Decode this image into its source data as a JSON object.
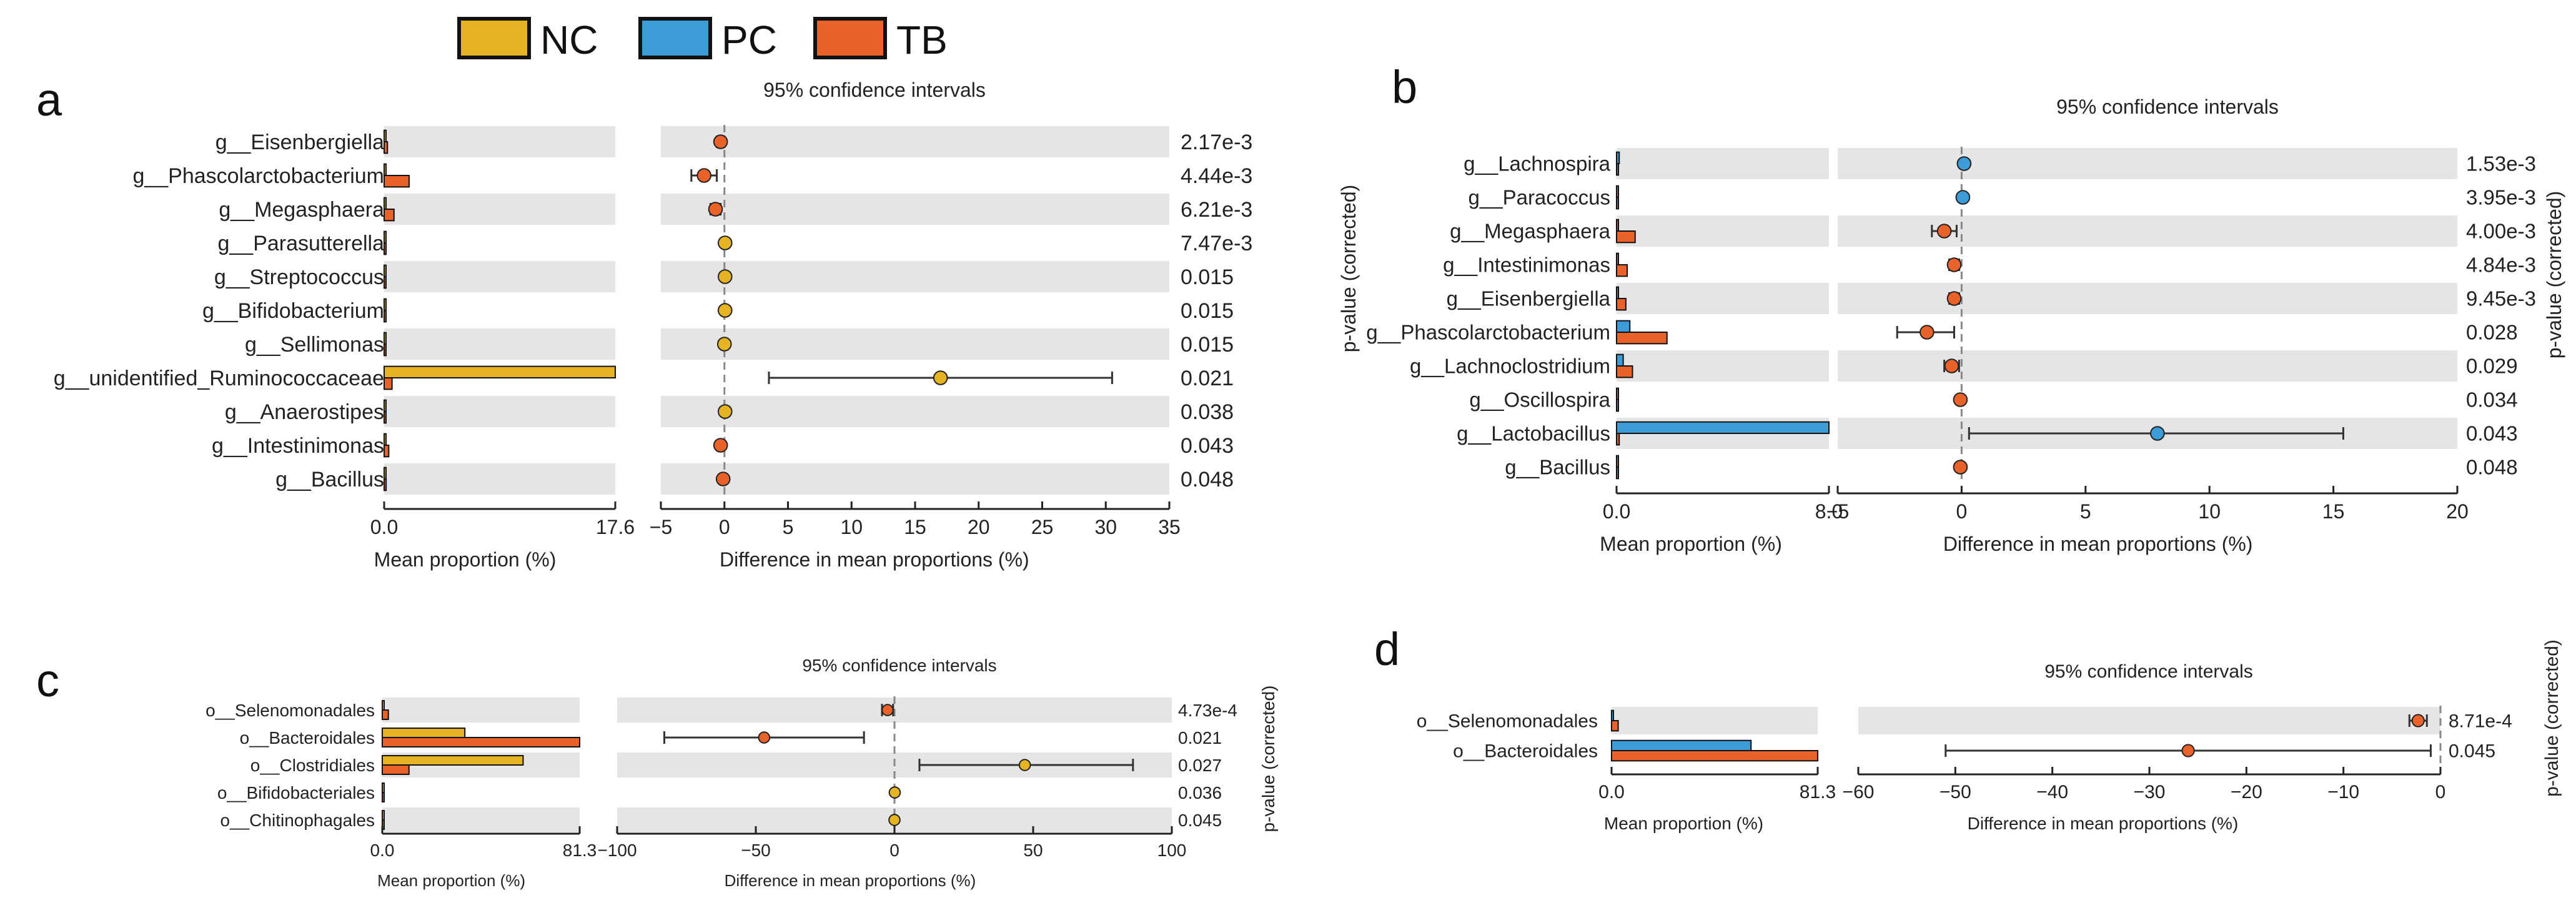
{
  "legend": {
    "items": [
      {
        "label": "NC",
        "color": "#E6B422"
      },
      {
        "label": "PC",
        "color": "#3C9CD8"
      },
      {
        "label": "TB",
        "color": "#E8622A"
      }
    ]
  },
  "labels": {
    "ci_title": "95% confidence intervals",
    "mean_xlabel": "Mean proportion (%)",
    "diff_xlabel": "Difference in mean proportions (%)",
    "pvalue_label": "p-value (corrected)"
  },
  "chart_data": [
    {
      "panel": "a",
      "type": "extended-error-bar",
      "title": "95% confidence intervals",
      "groups": [
        "NC",
        "TB"
      ],
      "categories": [
        "g__Eisenbergiella",
        "g__Phascolarctobacterium",
        "g__Megasphaera",
        "g__Parasutterella",
        "g__Streptococcus",
        "g__Bifidobacterium",
        "g__Sellimonas",
        "g__unidentified_Ruminococcaceae",
        "g__Anaerostipes",
        "g__Intestinimonas",
        "g__Bacillus"
      ],
      "mean_series": [
        {
          "name": "NC",
          "values": [
            0.05,
            0.05,
            0.05,
            0.02,
            0.02,
            0.02,
            0.02,
            17.6,
            0.02,
            0.05,
            0.02
          ]
        },
        {
          "name": "TB",
          "values": [
            0.25,
            1.9,
            0.75,
            0.02,
            0.02,
            0.02,
            0.02,
            0.6,
            0.02,
            0.35,
            0.15
          ]
        }
      ],
      "mean_xlim": [
        0.0,
        17.6
      ],
      "mean_ticks": [
        "0.0",
        "17.6"
      ],
      "diff": [
        -0.3,
        -1.6,
        -0.7,
        0.05,
        0.05,
        0.05,
        0.0,
        17.0,
        0.05,
        -0.3,
        -0.1
      ],
      "ci_low": [
        -0.6,
        -2.6,
        -1.1,
        -0.05,
        -0.05,
        -0.05,
        -0.1,
        3.5,
        -0.05,
        -0.5,
        -0.3
      ],
      "ci_high": [
        0.0,
        -0.6,
        -0.3,
        0.15,
        0.15,
        0.15,
        0.1,
        30.5,
        0.15,
        -0.1,
        0.1
      ],
      "diff_xlim": [
        -5,
        35
      ],
      "diff_ticks": [
        -5,
        0,
        5,
        10,
        15,
        20,
        25,
        30,
        35
      ],
      "p_values": [
        "2.17e-3",
        "4.44e-3",
        "6.21e-3",
        "7.47e-3",
        "0.015",
        "0.015",
        "0.015",
        "0.021",
        "0.038",
        "0.043",
        "0.048"
      ],
      "xlabel_mean": "Mean proportion (%)",
      "xlabel_diff": "Difference in mean proportions (%)",
      "ylabel_right": "p-value (corrected)"
    },
    {
      "panel": "b",
      "type": "extended-error-bar",
      "title": "95% confidence intervals",
      "groups": [
        "PC",
        "TB"
      ],
      "categories": [
        "g__Lachnospira",
        "g__Paracoccus",
        "g__Megasphaera",
        "g__Intestinimonas",
        "g__Eisenbergiella",
        "g__Phascolarctobacterium",
        "g__Lachnoclostridium",
        "g__Oscillospira",
        "g__Lactobacillus",
        "g__Bacillus"
      ],
      "mean_series": [
        {
          "name": "PC",
          "values": [
            0.1,
            0.05,
            0.02,
            0.05,
            0.05,
            0.5,
            0.25,
            0.02,
            8.0,
            0.02
          ]
        },
        {
          "name": "TB",
          "values": [
            0.02,
            0.02,
            0.7,
            0.4,
            0.35,
            1.9,
            0.6,
            0.05,
            0.1,
            0.05
          ]
        }
      ],
      "mean_xlim": [
        0.0,
        8.0
      ],
      "mean_ticks": [
        "0.0",
        "8.0"
      ],
      "diff": [
        0.1,
        0.05,
        -0.7,
        -0.3,
        -0.3,
        -1.4,
        -0.4,
        -0.05,
        7.9,
        -0.05
      ],
      "ci_low": [
        0.0,
        0.0,
        -1.2,
        -0.5,
        -0.5,
        -2.6,
        -0.7,
        -0.15,
        0.3,
        -0.15
      ],
      "ci_high": [
        0.2,
        0.1,
        -0.2,
        -0.1,
        -0.1,
        -0.3,
        -0.1,
        0.05,
        15.4,
        0.05
      ],
      "diff_xlim": [
        -5,
        20
      ],
      "diff_ticks": [
        -5,
        0,
        5,
        10,
        15,
        20
      ],
      "p_values": [
        "1.53e-3",
        "3.95e-3",
        "4.00e-3",
        "4.84e-3",
        "9.45e-3",
        "0.028",
        "0.029",
        "0.034",
        "0.043",
        "0.048"
      ],
      "xlabel_mean": "Mean proportion (%)",
      "xlabel_diff": "Difference in mean proportions (%)",
      "ylabel_right": "p-value (corrected)"
    },
    {
      "panel": "c",
      "type": "extended-error-bar",
      "title": "95% confidence intervals",
      "groups": [
        "NC",
        "TB"
      ],
      "categories": [
        "o__Selenomonadales",
        "o__Bacteroidales",
        "o__Clostridiales",
        "o__Bifidobacteriales",
        "o__Chitinophagales"
      ],
      "mean_series": [
        {
          "name": "NC",
          "values": [
            0.3,
            34.0,
            58.0,
            0.1,
            0.05
          ]
        },
        {
          "name": "TB",
          "values": [
            2.5,
            81.3,
            11.0,
            0.05,
            0.1
          ]
        }
      ],
      "mean_xlim": [
        0.0,
        81.3
      ],
      "mean_ticks": [
        "0.0",
        "81.3"
      ],
      "diff": [
        -2.5,
        -47.0,
        47.0,
        0.1,
        0.0
      ],
      "ci_low": [
        -4.5,
        -83.0,
        9.0,
        0.0,
        -0.1
      ],
      "ci_high": [
        -0.5,
        -11.0,
        86.0,
        0.2,
        0.1
      ],
      "diff_xlim": [
        -100,
        100
      ],
      "diff_ticks": [
        -100,
        -50,
        0,
        50,
        100
      ],
      "p_values": [
        "4.73e-4",
        "0.021",
        "0.027",
        "0.036",
        "0.045"
      ],
      "xlabel_mean": "Mean proportion (%)",
      "xlabel_diff": "Difference in mean proportions (%)",
      "ylabel_right": "p-value (corrected)"
    },
    {
      "panel": "d",
      "type": "extended-error-bar",
      "title": "95% confidence intervals",
      "groups": [
        "PC",
        "TB"
      ],
      "categories": [
        "o__Selenomonadales",
        "o__Bacteroidales"
      ],
      "mean_series": [
        {
          "name": "PC",
          "values": [
            0.3,
            55.0
          ]
        },
        {
          "name": "TB",
          "values": [
            2.6,
            81.3
          ]
        }
      ],
      "mean_xlim": [
        0.0,
        81.3
      ],
      "mean_ticks": [
        "0.0",
        "81.3"
      ],
      "diff": [
        -2.3,
        -26.0
      ],
      "ci_low": [
        -3.2,
        -51.0
      ],
      "ci_high": [
        -1.4,
        -1.0
      ],
      "diff_xlim": [
        -60,
        0
      ],
      "diff_ticks": [
        -60,
        -50,
        -40,
        -30,
        -20,
        -10,
        0
      ],
      "p_values": [
        "8.71e-4",
        "0.045"
      ],
      "xlabel_mean": "Mean proportion (%)",
      "xlabel_diff": "Difference in mean proportions (%)",
      "ylabel_right": "p-value (corrected)"
    }
  ]
}
